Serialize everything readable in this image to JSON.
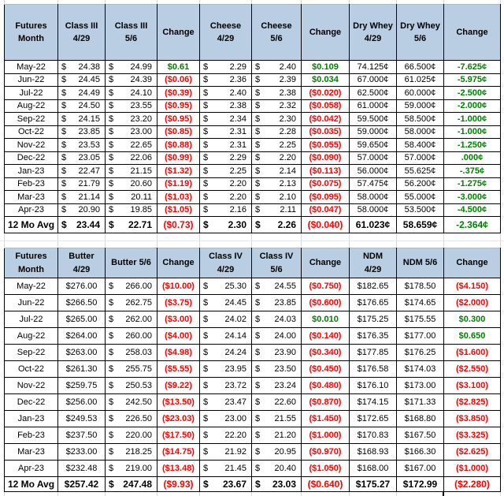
{
  "colors": {
    "header_bg": "#b9cde3",
    "positive_change": "#008000",
    "negative_change": "#ff0000",
    "cell_border": "#000000",
    "sheet_gridline": "#d2d7dc"
  },
  "formats": {
    "currency_prefix": "$"
  },
  "tables": {
    "top": {
      "columns": [
        {
          "label": [
            "Futures",
            "Month"
          ],
          "type": "month"
        },
        {
          "label": [
            "Class III",
            "4/29"
          ],
          "type": "acct"
        },
        {
          "label": [
            "Class III",
            "5/6"
          ],
          "type": "acct"
        },
        {
          "label": [
            "Change"
          ],
          "type": "change"
        },
        {
          "label": [
            "Cheese",
            "4/29"
          ],
          "type": "acct"
        },
        {
          "label": [
            "Cheese",
            "5/6"
          ],
          "type": "acct"
        },
        {
          "label": [
            "Change"
          ],
          "type": "change"
        },
        {
          "label": [
            "Dry Whey",
            "4/29"
          ],
          "type": "center"
        },
        {
          "label": [
            "Dry Whey",
            "5/6"
          ],
          "type": "center"
        },
        {
          "label": [
            "Change"
          ],
          "type": "change"
        }
      ],
      "rows": [
        [
          "May-22",
          "24.38",
          "24.99",
          {
            "t": "$0.61",
            "c": "green"
          },
          "2.29",
          "2.40",
          {
            "t": "$0.109",
            "c": "green"
          },
          "74.125¢",
          "66.500¢",
          {
            "t": "-7.625¢",
            "c": "green"
          }
        ],
        [
          "Jun-22",
          "24.45",
          "24.39",
          {
            "t": "($0.06)",
            "c": "red"
          },
          "2.36",
          "2.39",
          {
            "t": "$0.034",
            "c": "green"
          },
          "67.000¢",
          "61.025¢",
          {
            "t": "-5.975¢",
            "c": "green"
          }
        ],
        [
          "Jul-22",
          "24.49",
          "24.10",
          {
            "t": "($0.39)",
            "c": "red"
          },
          "2.40",
          "2.38",
          {
            "t": "($0.020)",
            "c": "red"
          },
          "62.500¢",
          "60.000¢",
          {
            "t": "-2.500¢",
            "c": "green"
          }
        ],
        [
          "Aug-22",
          "24.50",
          "23.55",
          {
            "t": "($0.95)",
            "c": "red"
          },
          "2.38",
          "2.32",
          {
            "t": "($0.058)",
            "c": "red"
          },
          "61.000¢",
          "59.000¢",
          {
            "t": "-2.000¢",
            "c": "green"
          }
        ],
        [
          "Sep-22",
          "24.15",
          "23.20",
          {
            "t": "($0.95)",
            "c": "red"
          },
          "2.34",
          "2.30",
          {
            "t": "($0.042)",
            "c": "red"
          },
          "59.500¢",
          "58.500¢",
          {
            "t": "-1.000¢",
            "c": "green"
          }
        ],
        [
          "Oct-22",
          "23.85",
          "23.00",
          {
            "t": "($0.85)",
            "c": "red"
          },
          "2.31",
          "2.28",
          {
            "t": "($0.035)",
            "c": "red"
          },
          "59.000¢",
          "58.000¢",
          {
            "t": "-1.000¢",
            "c": "green"
          }
        ],
        [
          "Nov-22",
          "23.53",
          "22.65",
          {
            "t": "($0.88)",
            "c": "red"
          },
          "2.31",
          "2.25",
          {
            "t": "($0.055)",
            "c": "red"
          },
          "59.650¢",
          "58.400¢",
          {
            "t": "-1.250¢",
            "c": "green"
          }
        ],
        [
          "Dec-22",
          "23.05",
          "22.06",
          {
            "t": "($0.99)",
            "c": "red"
          },
          "2.29",
          "2.20",
          {
            "t": "($0.090)",
            "c": "red"
          },
          "57.000¢",
          "57.000¢",
          {
            "t": ".000¢",
            "c": "green"
          }
        ],
        [
          "Jan-23",
          "22.47",
          "21.15",
          {
            "t": "($1.32)",
            "c": "red"
          },
          "2.25",
          "2.14",
          {
            "t": "($0.113)",
            "c": "red"
          },
          "56.000¢",
          "55.625¢",
          {
            "t": "-.375¢",
            "c": "green"
          }
        ],
        [
          "Feb-23",
          "21.79",
          "20.60",
          {
            "t": "($1.19)",
            "c": "red"
          },
          "2.20",
          "2.13",
          {
            "t": "($0.075)",
            "c": "red"
          },
          "57.475¢",
          "56.200¢",
          {
            "t": "-1.275¢",
            "c": "green"
          }
        ],
        [
          "Mar-23",
          "21.14",
          "20.11",
          {
            "t": "($1.03)",
            "c": "red"
          },
          "2.20",
          "2.10",
          {
            "t": "($0.095)",
            "c": "red"
          },
          "58.000¢",
          "55.000¢",
          {
            "t": "-3.000¢",
            "c": "green"
          }
        ],
        [
          "Apr-23",
          "20.90",
          "19.85",
          {
            "t": "($1.05)",
            "c": "red"
          },
          "2.16",
          "2.11",
          {
            "t": "($0.047)",
            "c": "red"
          },
          "58.000¢",
          "53.500¢",
          {
            "t": "-4.500¢",
            "c": "green"
          }
        ]
      ],
      "avg": [
        "12 Mo Avg",
        "23.44",
        "22.71",
        {
          "t": "($0.73)",
          "c": "red"
        },
        "2.30",
        "2.26",
        {
          "t": "($0.040)",
          "c": "red"
        },
        "61.023¢",
        "58.659¢",
        {
          "t": "-2.364¢",
          "c": "green"
        }
      ]
    },
    "bottom": {
      "columns": [
        {
          "label": [
            "Futures",
            "Month"
          ],
          "type": "month"
        },
        {
          "label": [
            "Butter",
            "4/29"
          ],
          "type": "center"
        },
        {
          "label": [
            "Butter 5/6"
          ],
          "type": "acct"
        },
        {
          "label": [
            "Change"
          ],
          "type": "change"
        },
        {
          "label": [
            "Class IV",
            "4/29"
          ],
          "type": "acct"
        },
        {
          "label": [
            "Class IV",
            "5/6"
          ],
          "type": "acct"
        },
        {
          "label": [
            "Change"
          ],
          "type": "change"
        },
        {
          "label": [
            "NDM",
            "4/29"
          ],
          "type": "center"
        },
        {
          "label": [
            "NDM 5/6"
          ],
          "type": "center"
        },
        {
          "label": [
            "Change"
          ],
          "type": "change"
        }
      ],
      "rows": [
        [
          "May-22",
          "$276.00",
          "266.00",
          {
            "t": "($10.00)",
            "c": "red"
          },
          "25.30",
          "24.55",
          {
            "t": "($0.750)",
            "c": "red"
          },
          "$182.65",
          "$178.50",
          {
            "t": "($4.150)",
            "c": "red"
          }
        ],
        [
          "Jun-22",
          "$266.50",
          "262.75",
          {
            "t": "($3.75)",
            "c": "red"
          },
          "24.45",
          "23.85",
          {
            "t": "($0.600)",
            "c": "red"
          },
          "$176.65",
          "$174.65",
          {
            "t": "($2.000)",
            "c": "red"
          }
        ],
        [
          "Jul-22",
          "$265.00",
          "262.00",
          {
            "t": "($3.00)",
            "c": "red"
          },
          "24.02",
          "24.03",
          {
            "t": "$0.010",
            "c": "green"
          },
          "$175.25",
          "$175.55",
          {
            "t": "$0.300",
            "c": "green"
          }
        ],
        [
          "Aug-22",
          "$264.00",
          "260.00",
          {
            "t": "($4.00)",
            "c": "red"
          },
          "24.14",
          "24.00",
          {
            "t": "($0.140)",
            "c": "red"
          },
          "$176.35",
          "$177.00",
          {
            "t": "$0.650",
            "c": "green"
          }
        ],
        [
          "Sep-22",
          "$263.00",
          "258.03",
          {
            "t": "($4.98)",
            "c": "red"
          },
          "24.24",
          "23.90",
          {
            "t": "($0.340)",
            "c": "red"
          },
          "$177.85",
          "$176.25",
          {
            "t": "($1.600)",
            "c": "red"
          }
        ],
        [
          "Oct-22",
          "$261.30",
          "255.75",
          {
            "t": "($5.55)",
            "c": "red"
          },
          "23.95",
          "23.50",
          {
            "t": "($0.450)",
            "c": "red"
          },
          "$176.58",
          "$174.03",
          {
            "t": "($2.550)",
            "c": "red"
          }
        ],
        [
          "Nov-22",
          "$259.75",
          "250.53",
          {
            "t": "($9.22)",
            "c": "red"
          },
          "23.72",
          "23.24",
          {
            "t": "($0.480)",
            "c": "red"
          },
          "$176.10",
          "$173.00",
          {
            "t": "($3.100)",
            "c": "red"
          }
        ],
        [
          "Dec-22",
          "$256.00",
          "242.50",
          {
            "t": "($13.50)",
            "c": "red"
          },
          "23.47",
          "22.60",
          {
            "t": "($0.870)",
            "c": "red"
          },
          "$174.15",
          "$171.33",
          {
            "t": "($2.825)",
            "c": "red"
          }
        ],
        [
          "Jan-23",
          "$249.53",
          "226.50",
          {
            "t": "($23.03)",
            "c": "red"
          },
          "23.00",
          "21.55",
          {
            "t": "($1.450)",
            "c": "red"
          },
          "$172.65",
          "$168.80",
          {
            "t": "($3.850)",
            "c": "red"
          }
        ],
        [
          "Feb-23",
          "$237.50",
          "220.00",
          {
            "t": "($17.50)",
            "c": "red"
          },
          "22.20",
          "21.20",
          {
            "t": "($1.000)",
            "c": "red"
          },
          "$170.83",
          "$167.50",
          {
            "t": "($3.325)",
            "c": "red"
          }
        ],
        [
          "Mar-23",
          "$233.00",
          "218.25",
          {
            "t": "($14.75)",
            "c": "red"
          },
          "21.92",
          "20.95",
          {
            "t": "($0.970)",
            "c": "red"
          },
          "$168.93",
          "$166.30",
          {
            "t": "($2.625)",
            "c": "red"
          }
        ],
        [
          "Apr-23",
          "$232.48",
          "219.00",
          {
            "t": "($13.48)",
            "c": "red"
          },
          "21.45",
          "20.40",
          {
            "t": "($1.050)",
            "c": "red"
          },
          "$168.00",
          "$167.00",
          {
            "t": "($1.000)",
            "c": "red"
          }
        ]
      ],
      "avg": [
        "12 Mo Avg",
        "$257.42",
        "247.48",
        {
          "t": "($9.93)",
          "c": "red"
        },
        "23.67",
        "23.03",
        {
          "t": "($0.640)",
          "c": "red"
        },
        "$175.27",
        "$172.99",
        {
          "t": "($2.280)",
          "c": "red"
        }
      ]
    }
  }
}
